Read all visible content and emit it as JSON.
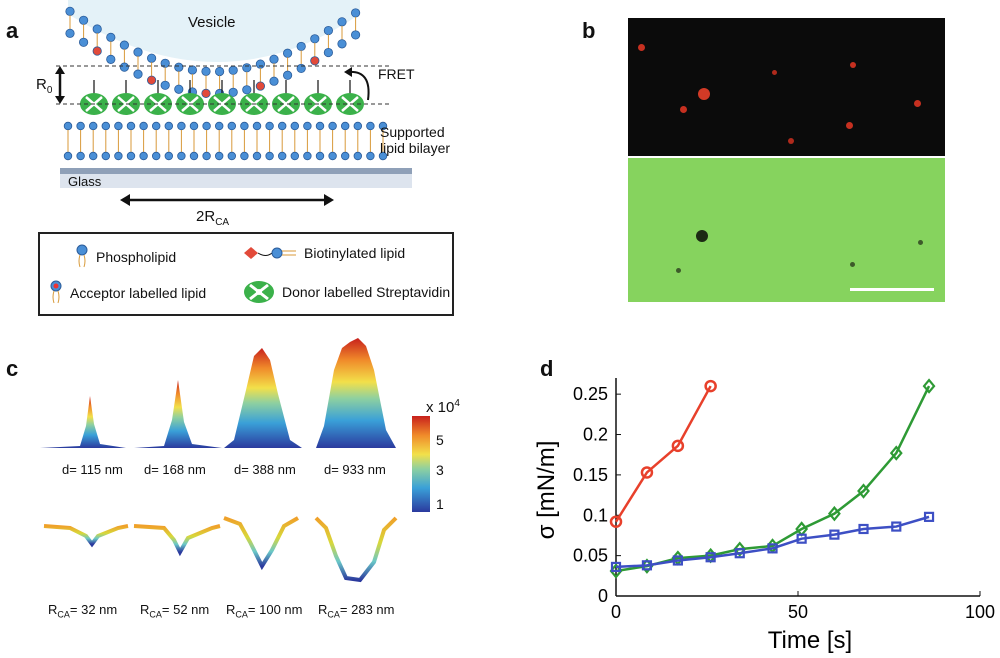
{
  "panels": {
    "a": "a",
    "b": "b",
    "c": "c",
    "d": "d"
  },
  "panel_a": {
    "vesicle_label": "Vesicle",
    "r0_label": "R",
    "r0_sub": "0",
    "fret_label": "FRET",
    "bilayer_label_1": "Supported",
    "bilayer_label_2": "lipid bilayer",
    "glass_label": "Glass",
    "rca_label": "2R",
    "rca_sub": "CA",
    "legend": {
      "phospholipid": "Phospholipid",
      "biotinylated": "Biotinylated lipid",
      "acceptor": "Acceptor labelled lipid",
      "donor": "Donor labelled Streptavidin"
    }
  },
  "panel_c": {
    "colorbar_exponent": "x 10",
    "colorbar_power": "4",
    "colorbar_ticks": [
      "5",
      "3",
      "1"
    ],
    "d_labels": [
      "d= 115 nm",
      "d= 168 nm",
      "d= 388 nm",
      "d= 933 nm"
    ],
    "rca_prefix": "R",
    "rca_sub": "CA",
    "rca_values": [
      "= 32 nm",
      "= 52 nm",
      "= 100 nm",
      "= 283 nm"
    ]
  },
  "colors": {
    "red": "#e8402b",
    "green": "#2e9a35",
    "blue": "#3d4fc4"
  },
  "chart_data": {
    "type": "line",
    "title": "",
    "xlabel": "Time [s]",
    "ylabel": "σ [mN/m]",
    "xlim": [
      0,
      100
    ],
    "ylim": [
      0,
      0.27
    ],
    "xticks": [
      "0",
      "50",
      "100"
    ],
    "yticks": [
      "0",
      "0.05",
      "0.1",
      "0.15",
      "0.2",
      "0.25"
    ],
    "series": [
      {
        "name": "red",
        "color": "#e8402b",
        "marker": "circle",
        "x": [
          0,
          8.5,
          17,
          26
        ],
        "y": [
          0.092,
          0.153,
          0.186,
          0.26
        ]
      },
      {
        "name": "green",
        "color": "#2e9a35",
        "marker": "diamond",
        "x": [
          0,
          8.5,
          17,
          26,
          34,
          43,
          51,
          60,
          68,
          77,
          86
        ],
        "y": [
          0.031,
          0.037,
          0.047,
          0.05,
          0.058,
          0.062,
          0.083,
          0.102,
          0.13,
          0.177,
          0.26
        ]
      },
      {
        "name": "blue",
        "color": "#3d4fc4",
        "marker": "square",
        "x": [
          0,
          8.5,
          17,
          26,
          34,
          43,
          51,
          60,
          68,
          77,
          86
        ],
        "y": [
          0.036,
          0.038,
          0.044,
          0.048,
          0.053,
          0.059,
          0.071,
          0.076,
          0.083,
          0.086,
          0.098
        ]
      }
    ]
  }
}
